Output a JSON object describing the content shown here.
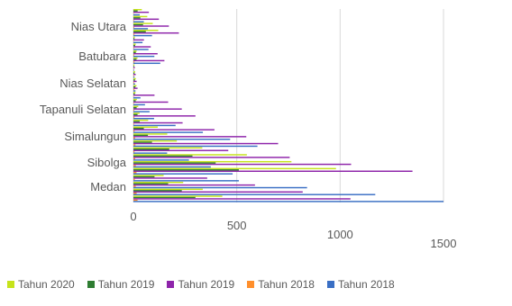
{
  "chart_data": {
    "type": "bar",
    "orientation": "horizontal",
    "xlim": [
      0,
      1500
    ],
    "x_ticks": [
      0,
      500,
      1000,
      1500
    ],
    "category_labels": [
      "Medan",
      "Sibolga",
      "Simalungun",
      "Tapanuli Selatan",
      "Nias Selatan",
      "Batubara",
      "Nias Utara"
    ],
    "legend_position": "bottom",
    "grid": true,
    "series": [
      {
        "name": "Tahun 2020",
        "color": "#c6e31b",
        "values": [
          430,
          980,
          210,
          30,
          15,
          20,
          120
        ]
      },
      {
        "name": "Tahun 2019",
        "color": "#2f7d32",
        "values": [
          300,
          510,
          90,
          20,
          10,
          15,
          60
        ]
      },
      {
        "name": "Tahun 2019",
        "color": "#8e24aa",
        "values": [
          1050,
          1350,
          700,
          300,
          20,
          150,
          220
        ]
      },
      {
        "name": "Tahun 2018",
        "color": "#ff8f2c",
        "values": [
          20,
          15,
          10,
          5,
          5,
          5,
          5
        ]
      },
      {
        "name": "Tahun 2018",
        "color": "#3a6fc4",
        "values": [
          1500,
          480,
          600,
          100,
          10,
          130,
          90
        ]
      }
    ]
  }
}
